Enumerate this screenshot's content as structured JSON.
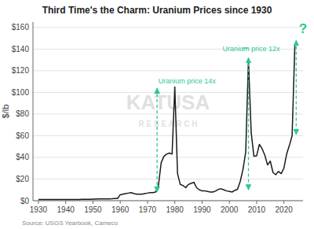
{
  "chart_data": {
    "type": "line",
    "title": "Third Time's the Charm: Uranium Prices since 1930",
    "ylabel": "$/lb",
    "source": "Source: USGS Yearbook, Cameco",
    "color": "#1a1a1a",
    "grid": true,
    "xlim": [
      1928,
      2027
    ],
    "xticks": [
      1930,
      1940,
      1950,
      1960,
      1970,
      1980,
      1990,
      2000,
      2010,
      2020
    ],
    "ylim": [
      0,
      165
    ],
    "yticks": [
      {
        "value": 0,
        "label": "$0"
      },
      {
        "value": 20,
        "label": "$20"
      },
      {
        "value": 40,
        "label": "$40"
      },
      {
        "value": 60,
        "label": "$60"
      },
      {
        "value": 80,
        "label": "$80"
      },
      {
        "value": 100,
        "label": "$100"
      },
      {
        "value": 120,
        "label": "$120"
      },
      {
        "value": 140,
        "label": "$140"
      },
      {
        "value": 160,
        "label": "$160"
      }
    ],
    "x": [
      1930,
      1931,
      1932,
      1933,
      1934,
      1935,
      1936,
      1937,
      1938,
      1939,
      1940,
      1941,
      1942,
      1943,
      1944,
      1945,
      1946,
      1947,
      1948,
      1949,
      1950,
      1951,
      1952,
      1953,
      1954,
      1955,
      1956,
      1957,
      1958,
      1959,
      1960,
      1961,
      1962,
      1963,
      1964,
      1965,
      1966,
      1967,
      1968,
      1969,
      1970,
      1971,
      1972,
      1973,
      1974,
      1975,
      1976,
      1977,
      1978,
      1979,
      1980,
      1981,
      1982,
      1983,
      1984,
      1985,
      1986,
      1987,
      1988,
      1989,
      1990,
      1991,
      1992,
      1993,
      1994,
      1995,
      1996,
      1997,
      1998,
      1999,
      2000,
      2001,
      2002,
      2003,
      2004,
      2005,
      2006,
      2007,
      2008,
      2009,
      2010,
      2011,
      2012,
      2013,
      2014,
      2015,
      2016,
      2017,
      2018,
      2019,
      2020,
      2021,
      2022,
      2023,
      2024
    ],
    "values": [
      1.0,
      1.0,
      1.0,
      1.0,
      1.0,
      1.0,
      1.0,
      1.0,
      1.0,
      1.0,
      1.0,
      1.0,
      1.1,
      1.1,
      1.1,
      1.1,
      1.2,
      1.2,
      1.2,
      1.2,
      1.4,
      1.5,
      1.6,
      1.7,
      1.7,
      1.7,
      1.7,
      1.8,
      2.0,
      2.0,
      5.5,
      6.0,
      6.5,
      7.0,
      7.5,
      6.5,
      6.0,
      6.0,
      6.0,
      6.5,
      7.0,
      7.5,
      7.5,
      8.0,
      14.0,
      35.0,
      41.0,
      43.0,
      44.0,
      43.0,
      105.0,
      25.0,
      15.0,
      14.0,
      12.0,
      15.0,
      16.0,
      17.0,
      12.0,
      10.0,
      9.0,
      9.0,
      8.5,
      8.0,
      8.0,
      9.0,
      10.5,
      11.0,
      10.0,
      9.0,
      8.5,
      8.0,
      9.5,
      10.5,
      18.0,
      29.0,
      45.0,
      130.0,
      63.0,
      41.0,
      41.5,
      52.0,
      48.0,
      42.0,
      33.0,
      36.5,
      26.0,
      24.0,
      27.0,
      25.0,
      30.0,
      43.0,
      51.0,
      60.0,
      143.0
    ],
    "watermark": {
      "text": "KATUSA",
      "subtitle": "R E S E A R C H",
      "color": "#d8d8d8"
    },
    "annotations": [
      {
        "text": "Uranium price 14x",
        "x": 1974.0,
        "y": 108,
        "color": "#2dc98e",
        "arrow_x": 1973.5,
        "arrow_top": 104,
        "arrow_bottom": 8
      },
      {
        "text": "Uranium price 12x",
        "x": 1997.5,
        "y": 138,
        "color": "#2dc98e",
        "arrow_x": 2007.0,
        "arrow_top": 132,
        "arrow_bottom": 10,
        "connector_x1": 2004.5,
        "connector_x2": 2007.0,
        "connector_y": 141
      },
      {
        "text": "?",
        "x": 2025.5,
        "y": 155,
        "color": "#2dc98e",
        "arrow_x": 2024.5,
        "arrow_top": 148,
        "arrow_bottom": 61
      }
    ]
  }
}
